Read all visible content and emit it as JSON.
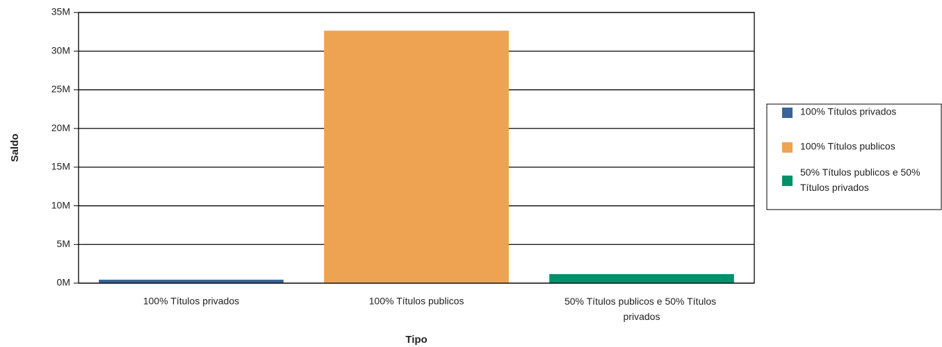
{
  "chart_data": {
    "type": "bar",
    "x_label": "Tipo",
    "y_label": "Saldo",
    "categories": [
      "100% Títulos privados",
      "100% Títulos publicos",
      "50% Títulos publicos e 50% Títulos privados"
    ],
    "values": [
      450000,
      32650000,
      1170000
    ],
    "colors": [
      "#3a6497",
      "#eea353",
      "#00916b"
    ],
    "ylim": [
      0,
      35000000
    ],
    "yticks": [
      {
        "value": 0,
        "label": "0M"
      },
      {
        "value": 5000000,
        "label": "5M"
      },
      {
        "value": 10000000,
        "label": "10M"
      },
      {
        "value": 15000000,
        "label": "15M"
      },
      {
        "value": 20000000,
        "label": "20M"
      },
      {
        "value": 25000000,
        "label": "25M"
      },
      {
        "value": 30000000,
        "label": "30M"
      },
      {
        "value": 35000000,
        "label": "35M"
      }
    ],
    "grid": true,
    "legend": "right"
  }
}
